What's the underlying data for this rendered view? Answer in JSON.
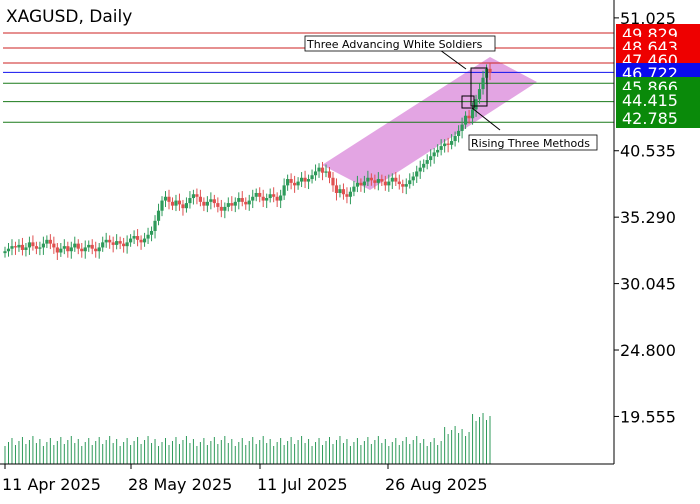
{
  "title": "XAGUSD, Daily",
  "colors": {
    "up": "#2e9a5a",
    "down": "#e05050",
    "resistance": "#cc2222",
    "support": "#1a7a1a",
    "current": "#1010ee",
    "channel": "#c84bc8",
    "volume": "#2e9a5a",
    "axis": "#000000"
  },
  "chart_data": {
    "type": "candlestick",
    "symbol": "XAGUSD",
    "timeframe": "Daily",
    "x_tick_labels": [
      "11 Apr 2025",
      "28 May 2025",
      "11 Jul 2025",
      "26 Aug 2025"
    ],
    "y_tick_labels": [
      "51.025",
      "40.535",
      "35.290",
      "30.045",
      "24.800",
      "19.555"
    ],
    "y_ticks": [
      51.025,
      40.535,
      35.29,
      30.045,
      24.8,
      19.555
    ],
    "ylim": [
      15.8,
      52.2
    ],
    "current_price": 46.722,
    "resistance_levels": [
      49.829,
      48.643,
      47.46
    ],
    "support_levels": [
      45.866,
      44.415,
      42.785
    ],
    "price_labels": [
      {
        "value": 49.829,
        "text": "49.829",
        "kind": "resistance"
      },
      {
        "value": 48.643,
        "text": "48.643",
        "kind": "resistance"
      },
      {
        "value": 47.46,
        "text": "47.460",
        "kind": "resistance"
      },
      {
        "value": 46.722,
        "text": "46.722",
        "kind": "current"
      },
      {
        "value": 45.866,
        "text": "45.866",
        "kind": "support"
      },
      {
        "value": 44.415,
        "text": "44.415",
        "kind": "support"
      },
      {
        "value": 42.785,
        "text": "42.785",
        "kind": "support"
      }
    ],
    "annotations": [
      "Three Advancing White Soldiers",
      "Rising Three Methods"
    ],
    "closes": [
      32.6,
      32.8,
      33.0,
      32.9,
      33.1,
      32.7,
      32.9,
      33.3,
      33.0,
      32.8,
      32.9,
      33.2,
      33.5,
      33.2,
      32.9,
      32.5,
      32.8,
      33.0,
      32.6,
      32.9,
      33.2,
      32.8,
      32.6,
      32.9,
      33.1,
      32.8,
      32.6,
      32.9,
      33.3,
      33.5,
      33.3,
      33.1,
      33.4,
      33.2,
      33.0,
      33.3,
      33.6,
      33.8,
      33.5,
      33.3,
      33.6,
      33.9,
      34.2,
      35.0,
      35.8,
      36.6,
      36.9,
      36.5,
      36.2,
      36.6,
      36.3,
      36.0,
      36.4,
      36.8,
      37.1,
      36.9,
      36.5,
      36.2,
      36.5,
      36.7,
      36.4,
      36.1,
      35.8,
      36.1,
      36.4,
      36.2,
      36.5,
      36.8,
      36.5,
      36.3,
      36.6,
      36.9,
      37.2,
      36.9,
      36.6,
      36.8,
      37.1,
      36.9,
      36.6,
      37.0,
      37.8,
      38.3,
      38.0,
      37.8,
      38.1,
      38.4,
      38.1,
      38.3,
      38.6,
      38.9,
      39.2,
      38.8,
      38.9,
      38.4,
      37.8,
      37.2,
      37.5,
      37.1,
      36.9,
      37.3,
      37.7,
      38.0,
      37.8,
      38.1,
      38.4,
      38.2,
      38.0,
      38.3,
      38.1,
      37.8,
      38.1,
      38.4,
      38.1,
      37.9,
      37.7,
      37.9,
      38.2,
      38.5,
      38.9,
      39.2,
      39.5,
      39.8,
      40.1,
      40.4,
      40.6,
      40.9,
      41.1,
      41.0,
      41.3,
      41.7,
      42.1,
      42.6,
      43.3,
      43.1,
      43.8,
      44.6,
      45.4,
      46.3,
      47.0,
      46.7
    ],
    "volume_note": "volume histogram shown beneath candles"
  }
}
